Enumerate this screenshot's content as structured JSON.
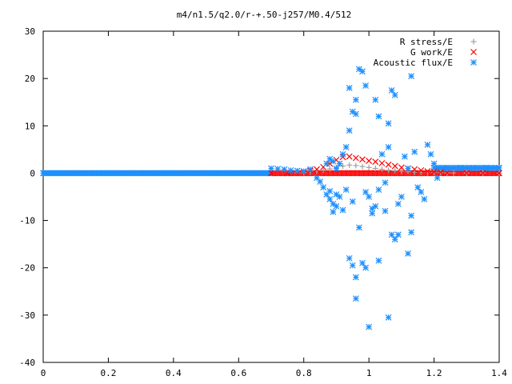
{
  "chart_data": {
    "type": "scatter",
    "title": "m4/n1.5/q2.0/r-+.50-j257/M0.4/512",
    "xlabel": "",
    "ylabel": "",
    "xlim": [
      0,
      1.4
    ],
    "ylim": [
      -40,
      30
    ],
    "xticks": [
      "0",
      "0.2",
      "0.4",
      "0.6",
      "0.8",
      "1",
      "1.2",
      "1.4"
    ],
    "yticks": [
      "30",
      "20",
      "10",
      "0",
      "-10",
      "-20",
      "-30",
      "-40"
    ],
    "grid": false,
    "legend_position": "top-right",
    "series": [
      {
        "name": "R stress/E",
        "marker": "plus",
        "color": "#a0a0a0",
        "points": [
          [
            0.8,
            0.1
          ],
          [
            0.82,
            0.2
          ],
          [
            0.84,
            0.4
          ],
          [
            0.86,
            0.6
          ],
          [
            0.88,
            0.9
          ],
          [
            0.9,
            1.2
          ],
          [
            0.92,
            1.5
          ],
          [
            0.94,
            1.7
          ],
          [
            0.96,
            1.6
          ],
          [
            0.98,
            1.4
          ],
          [
            1.0,
            1.2
          ],
          [
            1.02,
            1.0
          ],
          [
            1.04,
            0.8
          ],
          [
            1.06,
            0.6
          ],
          [
            1.08,
            0.5
          ],
          [
            1.1,
            0.4
          ],
          [
            1.12,
            0.3
          ],
          [
            1.14,
            0.2
          ],
          [
            1.16,
            0.15
          ],
          [
            1.18,
            0.1
          ],
          [
            1.2,
            0.08
          ],
          [
            1.22,
            0.05
          ],
          [
            1.24,
            0.03
          ],
          [
            1.26,
            0.02
          ],
          [
            1.3,
            0.01
          ],
          [
            1.35,
            0.0
          ],
          [
            1.4,
            0.0
          ]
        ]
      },
      {
        "name": "G work/E",
        "marker": "cross",
        "color": "#ff0000",
        "points": [
          [
            0.7,
            0.0
          ],
          [
            0.75,
            0.0
          ],
          [
            0.8,
            0.3
          ],
          [
            0.82,
            0.5
          ],
          [
            0.84,
            0.8
          ],
          [
            0.86,
            1.3
          ],
          [
            0.88,
            2.0
          ],
          [
            0.9,
            2.8
          ],
          [
            0.92,
            3.4
          ],
          [
            0.94,
            3.5
          ],
          [
            0.96,
            3.2
          ],
          [
            0.98,
            2.9
          ],
          [
            1.0,
            2.6
          ],
          [
            1.02,
            2.4
          ],
          [
            1.04,
            2.1
          ],
          [
            1.06,
            1.8
          ],
          [
            1.08,
            1.5
          ],
          [
            1.1,
            1.2
          ],
          [
            1.12,
            1.0
          ],
          [
            1.14,
            0.8
          ],
          [
            1.16,
            0.6
          ],
          [
            1.18,
            0.4
          ],
          [
            1.2,
            0.3
          ],
          [
            1.22,
            0.2
          ],
          [
            1.24,
            0.1
          ],
          [
            1.3,
            0.05
          ],
          [
            1.35,
            0.0
          ],
          [
            1.4,
            0.0
          ]
        ]
      },
      {
        "name": "Acoustic flux/E",
        "marker": "star",
        "color": "#1e90ff",
        "points": [
          [
            0.7,
            1.0
          ],
          [
            0.72,
            0.9
          ],
          [
            0.74,
            0.8
          ],
          [
            0.76,
            0.6
          ],
          [
            0.78,
            0.5
          ],
          [
            0.8,
            0.4
          ],
          [
            0.82,
            0.8
          ],
          [
            0.84,
            -1.0
          ],
          [
            0.85,
            -1.8
          ],
          [
            0.86,
            -3.0
          ],
          [
            0.87,
            -4.5
          ],
          [
            0.88,
            -5.5
          ],
          [
            0.89,
            -6.5
          ],
          [
            0.9,
            -4.5
          ],
          [
            0.91,
            -5.0
          ],
          [
            0.92,
            -7.8
          ],
          [
            0.9,
            -7.0
          ],
          [
            0.89,
            -8.2
          ],
          [
            0.88,
            -3.8
          ],
          [
            0.87,
            2.0
          ],
          [
            0.88,
            3.0
          ],
          [
            0.89,
            2.5
          ],
          [
            0.9,
            1.0
          ],
          [
            0.91,
            2.0
          ],
          [
            0.92,
            4.0
          ],
          [
            0.93,
            5.5
          ],
          [
            0.94,
            9.0
          ],
          [
            0.95,
            13.0
          ],
          [
            0.94,
            18.0
          ],
          [
            0.96,
            12.5
          ],
          [
            0.97,
            22.0
          ],
          [
            0.98,
            21.5
          ],
          [
            0.99,
            18.5
          ],
          [
            0.96,
            15.5
          ],
          [
            0.95,
            -6.0
          ],
          [
            0.94,
            -18.0
          ],
          [
            0.95,
            -19.5
          ],
          [
            0.96,
            -22.0
          ],
          [
            0.96,
            -26.5
          ],
          [
            0.98,
            -19.0
          ],
          [
            0.99,
            -20.0
          ],
          [
            1.0,
            -32.5
          ],
          [
            0.99,
            -4.0
          ],
          [
            1.0,
            -5.0
          ],
          [
            1.01,
            -8.5
          ],
          [
            1.02,
            -7.0
          ],
          [
            1.03,
            -3.5
          ],
          [
            1.02,
            15.5
          ],
          [
            1.03,
            12.0
          ],
          [
            1.04,
            4.0
          ],
          [
            1.05,
            -2.0
          ],
          [
            1.06,
            5.5
          ],
          [
            1.06,
            10.5
          ],
          [
            1.07,
            17.5
          ],
          [
            1.08,
            16.5
          ],
          [
            1.07,
            -13.0
          ],
          [
            1.08,
            -14.0
          ],
          [
            1.09,
            -6.5
          ],
          [
            1.1,
            -5.0
          ],
          [
            1.11,
            3.5
          ],
          [
            1.12,
            1.0
          ],
          [
            1.13,
            -9.0
          ],
          [
            1.12,
            -17.0
          ],
          [
            1.13,
            -12.5
          ],
          [
            1.14,
            4.5
          ],
          [
            1.15,
            -3.0
          ],
          [
            1.16,
            -4.0
          ],
          [
            1.17,
            -5.5
          ],
          [
            1.18,
            6.0
          ],
          [
            1.19,
            4.0
          ],
          [
            1.2,
            2.0
          ],
          [
            1.21,
            -1.0
          ],
          [
            1.13,
            20.5
          ],
          [
            1.09,
            -13.0
          ],
          [
            1.06,
            -30.5
          ],
          [
            1.05,
            -8.0
          ],
          [
            1.03,
            -18.5
          ],
          [
            1.01,
            -7.5
          ],
          [
            0.97,
            -11.5
          ],
          [
            0.93,
            -3.5
          ],
          [
            1.24,
            1.0
          ],
          [
            1.28,
            1.1
          ],
          [
            1.32,
            1.1
          ],
          [
            1.36,
            1.1
          ],
          [
            1.4,
            1.1
          ]
        ]
      }
    ]
  }
}
